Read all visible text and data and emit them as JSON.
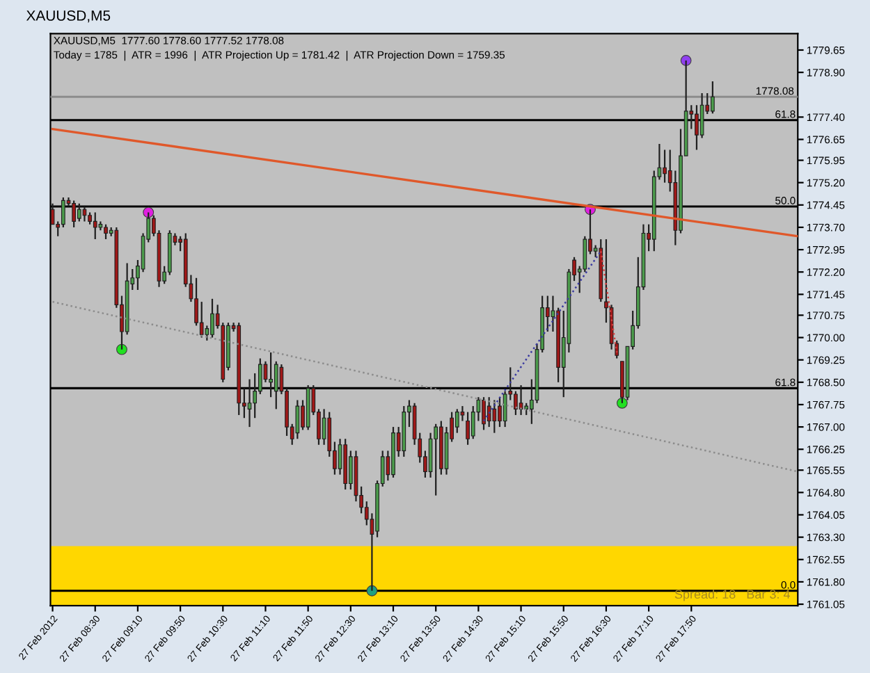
{
  "chart_data": {
    "type": "candlestick",
    "title": "XAUUSD,M5",
    "annotations": [
      "XAUUSD,M5  1777.60 1778.60 1777.52 1778.08",
      "Today = 1785  |  ATR = 1996  |  ATR Projection Up = 1781.42  |  ATR Projection Down = 1759.35",
      "Spread: 18   Bar 3: 4",
      {
        "text": "61.8",
        "x": "2012-02-27T19:28",
        "y": 1777.3
      },
      {
        "text": "50.0",
        "x": "2012-02-27T19:28",
        "y": 1774.4
      },
      {
        "text": "61.8",
        "x": "2012-02-27T19:28",
        "y": 1768.3
      },
      {
        "text": "0.0",
        "x": "2012-02-27T19:28",
        "y": 1761.5
      }
    ],
    "x": [
      "2012-02-27T07:50",
      "2012-02-27T07:55",
      "2012-02-27T08:00",
      "2012-02-27T08:05",
      "2012-02-27T08:10",
      "2012-02-27T08:15",
      "2012-02-27T08:20",
      "2012-02-27T08:25",
      "2012-02-27T08:30",
      "2012-02-27T08:35",
      "2012-02-27T08:40",
      "2012-02-27T08:45",
      "2012-02-27T08:50",
      "2012-02-27T08:55",
      "2012-02-27T09:00",
      "2012-02-27T09:05",
      "2012-02-27T09:10",
      "2012-02-27T09:15",
      "2012-02-27T09:20",
      "2012-02-27T09:25",
      "2012-02-27T09:30",
      "2012-02-27T09:35",
      "2012-02-27T09:40",
      "2012-02-27T09:45",
      "2012-02-27T09:50",
      "2012-02-27T09:55",
      "2012-02-27T10:00",
      "2012-02-27T10:05",
      "2012-02-27T10:10",
      "2012-02-27T10:15",
      "2012-02-27T10:20",
      "2012-02-27T10:25",
      "2012-02-27T10:30",
      "2012-02-27T10:35",
      "2012-02-27T10:40",
      "2012-02-27T10:45",
      "2012-02-27T10:50",
      "2012-02-27T10:55",
      "2012-02-27T11:00",
      "2012-02-27T11:05",
      "2012-02-27T11:10",
      "2012-02-27T11:15",
      "2012-02-27T11:20",
      "2012-02-27T11:25",
      "2012-02-27T11:30",
      "2012-02-27T11:35",
      "2012-02-27T11:40",
      "2012-02-27T11:45",
      "2012-02-27T11:50",
      "2012-02-27T11:55",
      "2012-02-27T12:00",
      "2012-02-27T12:05",
      "2012-02-27T12:10",
      "2012-02-27T12:15",
      "2012-02-27T12:20",
      "2012-02-27T12:25",
      "2012-02-27T12:30",
      "2012-02-27T12:35",
      "2012-02-27T12:40",
      "2012-02-27T12:45",
      "2012-02-27T12:50",
      "2012-02-27T12:55",
      "2012-02-27T13:00",
      "2012-02-27T13:05",
      "2012-02-27T13:10",
      "2012-02-27T13:15",
      "2012-02-27T13:20",
      "2012-02-27T13:25",
      "2012-02-27T13:30",
      "2012-02-27T13:35",
      "2012-02-27T13:40",
      "2012-02-27T13:45",
      "2012-02-27T13:50",
      "2012-02-27T13:55",
      "2012-02-27T14:00",
      "2012-02-27T14:05",
      "2012-02-27T14:10",
      "2012-02-27T14:15",
      "2012-02-27T14:20",
      "2012-02-27T14:25",
      "2012-02-27T14:30",
      "2012-02-27T14:35",
      "2012-02-27T14:40",
      "2012-02-27T14:45",
      "2012-02-27T14:50",
      "2012-02-27T14:55",
      "2012-02-27T15:00",
      "2012-02-27T15:05",
      "2012-02-27T15:10",
      "2012-02-27T15:15",
      "2012-02-27T15:20",
      "2012-02-27T15:25",
      "2012-02-27T15:30",
      "2012-02-27T15:35",
      "2012-02-27T15:40",
      "2012-02-27T15:45",
      "2012-02-27T15:50",
      "2012-02-27T15:55",
      "2012-02-27T16:00",
      "2012-02-27T16:05",
      "2012-02-27T16:10",
      "2012-02-27T16:15",
      "2012-02-27T16:20",
      "2012-02-27T16:25",
      "2012-02-27T16:30",
      "2012-02-27T16:35",
      "2012-02-27T16:40",
      "2012-02-27T16:45",
      "2012-02-27T16:50",
      "2012-02-27T16:55",
      "2012-02-27T17:00",
      "2012-02-27T17:05",
      "2012-02-27T17:10",
      "2012-02-27T17:15",
      "2012-02-27T17:20",
      "2012-02-27T17:25",
      "2012-02-27T17:30",
      "2012-02-27T17:35",
      "2012-02-27T17:40",
      "2012-02-27T17:45",
      "2012-02-27T17:50",
      "2012-02-27T17:55",
      "2012-02-27T18:00",
      "2012-02-27T18:05",
      "2012-02-27T18:10"
    ],
    "ohlc": [
      [
        1774.3,
        1774.5,
        1773.8,
        1773.8
      ],
      [
        1773.8,
        1773.9,
        1773.4,
        1773.7
      ],
      [
        1773.8,
        1774.7,
        1773.7,
        1774.6
      ],
      [
        1774.6,
        1774.7,
        1774.4,
        1774.5
      ],
      [
        1774.5,
        1774.6,
        1773.7,
        1773.9
      ],
      [
        1774.0,
        1774.5,
        1773.9,
        1774.3
      ],
      [
        1774.3,
        1774.4,
        1773.9,
        1774.1
      ],
      [
        1774.1,
        1774.2,
        1773.8,
        1773.9
      ],
      [
        1773.9,
        1774.2,
        1773.3,
        1773.7
      ],
      [
        1773.7,
        1773.9,
        1773.6,
        1773.8
      ],
      [
        1773.7,
        1773.8,
        1773.3,
        1773.5
      ],
      [
        1773.5,
        1773.7,
        1773.4,
        1773.6
      ],
      [
        1773.6,
        1773.7,
        1771.0,
        1771.1
      ],
      [
        1771.1,
        1771.4,
        1769.6,
        1770.2
      ],
      [
        1770.2,
        1772.5,
        1770.1,
        1771.9
      ],
      [
        1771.8,
        1772.3,
        1771.6,
        1772.0
      ],
      [
        1772.0,
        1772.6,
        1771.6,
        1772.4
      ],
      [
        1772.3,
        1773.5,
        1772.2,
        1773.4
      ],
      [
        1773.3,
        1774.2,
        1773.2,
        1774.0
      ],
      [
        1774.0,
        1774.1,
        1773.4,
        1773.5
      ],
      [
        1773.5,
        1773.6,
        1771.7,
        1771.9
      ],
      [
        1771.9,
        1772.4,
        1771.8,
        1772.2
      ],
      [
        1772.2,
        1773.6,
        1772.1,
        1773.5
      ],
      [
        1773.4,
        1773.5,
        1773.1,
        1773.2
      ],
      [
        1773.3,
        1773.4,
        1772.9,
        1773.2
      ],
      [
        1773.3,
        1773.5,
        1771.7,
        1771.8
      ],
      [
        1771.8,
        1772.1,
        1771.2,
        1771.3
      ],
      [
        1771.3,
        1772.0,
        1770.4,
        1770.5
      ],
      [
        1770.5,
        1771.2,
        1770.0,
        1770.1
      ],
      [
        1770.1,
        1770.4,
        1769.9,
        1770.3
      ],
      [
        1770.1,
        1771.3,
        1770.0,
        1770.8
      ],
      [
        1770.8,
        1771.1,
        1770.3,
        1770.4
      ],
      [
        1770.4,
        1770.5,
        1768.5,
        1768.6
      ],
      [
        1769.0,
        1770.5,
        1768.9,
        1770.4
      ],
      [
        1770.4,
        1770.5,
        1770.2,
        1770.3
      ],
      [
        1770.4,
        1770.5,
        1767.4,
        1767.8
      ],
      [
        1767.8,
        1768.3,
        1767.3,
        1767.7
      ],
      [
        1767.6,
        1768.6,
        1767.0,
        1767.8
      ],
      [
        1767.8,
        1768.8,
        1767.3,
        1768.2
      ],
      [
        1768.2,
        1769.3,
        1768.1,
        1769.1
      ],
      [
        1769.1,
        1769.2,
        1768.5,
        1768.6
      ],
      [
        1768.5,
        1769.5,
        1768.0,
        1768.6
      ],
      [
        1768.2,
        1769.2,
        1767.6,
        1769.1
      ],
      [
        1769.0,
        1769.1,
        1768.1,
        1768.2
      ],
      [
        1768.2,
        1768.3,
        1766.7,
        1767.0
      ],
      [
        1767.0,
        1767.1,
        1766.4,
        1766.6
      ],
      [
        1766.8,
        1767.9,
        1766.6,
        1767.7
      ],
      [
        1767.7,
        1767.9,
        1766.9,
        1767.0
      ],
      [
        1767.0,
        1768.4,
        1766.9,
        1768.3
      ],
      [
        1768.3,
        1768.4,
        1767.4,
        1767.5
      ],
      [
        1767.5,
        1767.6,
        1766.4,
        1766.6
      ],
      [
        1766.6,
        1767.6,
        1766.4,
        1767.3
      ],
      [
        1767.3,
        1767.5,
        1766.0,
        1766.2
      ],
      [
        1766.2,
        1766.5,
        1765.4,
        1765.6
      ],
      [
        1765.6,
        1766.6,
        1765.4,
        1766.4
      ],
      [
        1766.4,
        1766.6,
        1764.9,
        1765.1
      ],
      [
        1765.1,
        1766.2,
        1764.9,
        1766.0
      ],
      [
        1766.0,
        1766.2,
        1764.5,
        1764.7
      ],
      [
        1764.7,
        1765.0,
        1764.1,
        1764.3
      ],
      [
        1764.3,
        1764.5,
        1763.7,
        1763.9
      ],
      [
        1763.9,
        1764.1,
        1761.5,
        1763.4
      ],
      [
        1763.5,
        1765.2,
        1763.3,
        1765.1
      ],
      [
        1765.1,
        1766.2,
        1765.0,
        1766.0
      ],
      [
        1766.0,
        1766.2,
        1765.2,
        1765.4
      ],
      [
        1765.4,
        1767.0,
        1765.3,
        1766.8
      ],
      [
        1766.8,
        1767.0,
        1766.0,
        1766.2
      ],
      [
        1766.2,
        1767.7,
        1766.0,
        1767.5
      ],
      [
        1767.5,
        1767.9,
        1767.0,
        1767.7
      ],
      [
        1767.7,
        1767.8,
        1766.4,
        1766.6
      ],
      [
        1766.6,
        1766.8,
        1765.8,
        1766.0
      ],
      [
        1766.0,
        1766.2,
        1765.3,
        1765.5
      ],
      [
        1765.5,
        1766.8,
        1765.3,
        1766.6
      ],
      [
        1766.6,
        1767.1,
        1764.7,
        1767.0
      ],
      [
        1767.0,
        1767.2,
        1765.4,
        1765.6
      ],
      [
        1765.6,
        1767.0,
        1765.4,
        1766.8
      ],
      [
        1767.3,
        1767.5,
        1766.5,
        1766.6
      ],
      [
        1767.0,
        1767.6,
        1766.8,
        1767.5
      ],
      [
        1767.5,
        1767.7,
        1767.2,
        1767.4
      ],
      [
        1767.2,
        1767.5,
        1766.4,
        1766.6
      ],
      [
        1766.7,
        1767.7,
        1766.6,
        1767.5
      ],
      [
        1767.5,
        1768.0,
        1767.2,
        1767.9
      ],
      [
        1767.9,
        1768.0,
        1766.9,
        1767.1
      ],
      [
        1767.7,
        1768.0,
        1767.0,
        1767.2
      ],
      [
        1767.6,
        1767.9,
        1766.8,
        1767.2
      ],
      [
        1767.7,
        1768.0,
        1767.0,
        1767.2
      ],
      [
        1767.2,
        1768.2,
        1767.0,
        1768.1
      ],
      [
        1768.2,
        1769.0,
        1767.9,
        1768.1
      ],
      [
        1768.1,
        1768.2,
        1767.4,
        1767.6
      ],
      [
        1767.8,
        1768.4,
        1767.4,
        1767.6
      ],
      [
        1767.6,
        1767.8,
        1767.4,
        1767.7
      ],
      [
        1767.6,
        1768.6,
        1767.1,
        1767.9
      ],
      [
        1767.9,
        1769.8,
        1767.8,
        1769.6
      ],
      [
        1769.6,
        1771.4,
        1769.5,
        1771.0
      ],
      [
        1771.0,
        1771.4,
        1770.2,
        1770.7
      ],
      [
        1770.7,
        1771.4,
        1770.2,
        1770.9
      ],
      [
        1770.9,
        1771.0,
        1768.5,
        1769.0
      ],
      [
        1769.0,
        1770.9,
        1768.0,
        1770.0
      ],
      [
        1769.8,
        1772.3,
        1769.5,
        1772.2
      ],
      [
        1772.6,
        1772.7,
        1771.9,
        1772.1
      ],
      [
        1772.2,
        1772.4,
        1771.5,
        1772.3
      ],
      [
        1772.3,
        1773.4,
        1772.2,
        1773.3
      ],
      [
        1773.3,
        1774.3,
        1772.8,
        1772.9
      ],
      [
        1772.9,
        1773.1,
        1772.7,
        1773.0
      ],
      [
        1773.0,
        1773.3,
        1771.2,
        1771.3
      ],
      [
        1771.2,
        1773.3,
        1770.5,
        1771.0
      ],
      [
        1771.0,
        1771.1,
        1769.6,
        1769.8
      ],
      [
        1769.8,
        1769.9,
        1769.3,
        1769.4
      ],
      [
        1769.2,
        1769.2,
        1767.8,
        1768.0
      ],
      [
        1768.0,
        1769.7,
        1767.9,
        1769.7
      ],
      [
        1769.7,
        1770.9,
        1769.6,
        1770.4
      ],
      [
        1770.4,
        1772.7,
        1770.3,
        1771.7
      ],
      [
        1771.7,
        1773.8,
        1771.6,
        1773.5
      ],
      [
        1773.5,
        1773.8,
        1772.9,
        1773.3
      ],
      [
        1773.3,
        1775.6,
        1772.9,
        1775.4
      ],
      [
        1775.4,
        1776.5,
        1775.3,
        1775.7
      ],
      [
        1775.7,
        1776.3,
        1775.2,
        1775.5
      ],
      [
        1775.6,
        1776.3,
        1774.9,
        1775.2
      ],
      [
        1775.2,
        1775.6,
        1773.1,
        1773.6
      ],
      [
        1773.6,
        1777.0,
        1773.5,
        1776.1
      ],
      [
        1776.1,
        1779.3,
        1776.1,
        1777.6
      ],
      [
        1777.6,
        1777.8,
        1777.0,
        1777.5
      ],
      [
        1777.5,
        1777.8,
        1776.3,
        1776.8
      ],
      [
        1776.8,
        1778.2,
        1776.7,
        1777.8
      ],
      [
        1777.8,
        1778.2,
        1777.5,
        1777.6
      ],
      [
        1777.6,
        1778.6,
        1777.52,
        1778.08
      ]
    ],
    "colors": [
      "#a01818",
      "#a01818",
      "#4c9c4c",
      "#a01818",
      "#a01818",
      "#4c9c4c",
      "#a01818",
      "#a01818",
      "#a01818",
      "#4c9c4c",
      "#a01818",
      "#4c9c4c",
      "#a01818",
      "#a01818",
      "#4c9c4c",
      "#4c9c4c",
      "#4c9c4c",
      "#4c9c4c",
      "#4c9c4c",
      "#a01818",
      "#a01818",
      "#4c9c4c",
      "#4c9c4c",
      "#a01818",
      "#a01818",
      "#a01818",
      "#a01818",
      "#a01818",
      "#a01818",
      "#4c9c4c",
      "#4c9c4c",
      "#a01818",
      "#a01818",
      "#4c9c4c",
      "#a01818",
      "#a01818",
      "#a01818",
      "#4c9c4c",
      "#4c9c4c",
      "#4c9c4c",
      "#a01818",
      "#4c9c4c",
      "#4c9c4c",
      "#a01818",
      "#a01818",
      "#a01818",
      "#4c9c4c",
      "#a01818",
      "#4c9c4c",
      "#a01818",
      "#a01818",
      "#4c9c4c",
      "#a01818",
      "#a01818",
      "#4c9c4c",
      "#a01818",
      "#4c9c4c",
      "#a01818",
      "#a01818",
      "#a01818",
      "#a01818",
      "#4c9c4c",
      "#4c9c4c",
      "#a01818",
      "#4c9c4c",
      "#a01818",
      "#4c9c4c",
      "#4c9c4c",
      "#a01818",
      "#a01818",
      "#a01818",
      "#4c9c4c",
      "#4c9c4c",
      "#a01818",
      "#4c9c4c",
      "#a01818",
      "#4c9c4c",
      "#a01818",
      "#a01818",
      "#4c9c4c",
      "#4c9c4c",
      "#a01818",
      "#a01818",
      "#a01818",
      "#a01818",
      "#4c9c4c",
      "#a01818",
      "#a01818",
      "#a01818",
      "#4c9c4c",
      "#4c9c4c",
      "#4c9c4c",
      "#4c9c4c",
      "#a01818",
      "#4c9c4c",
      "#a01818",
      "#4c9c4c",
      "#4c9c4c",
      "#a01818",
      "#4c9c4c",
      "#4c9c4c",
      "#a01818",
      "#4c9c4c",
      "#a01818",
      "#a01818",
      "#a01818",
      "#a01818",
      "#a01818",
      "#4c9c4c",
      "#4c9c4c",
      "#4c9c4c",
      "#4c9c4c",
      "#a01818",
      "#4c9c4c",
      "#4c9c4c",
      "#a01818",
      "#a01818",
      "#a01818",
      "#4c9c4c",
      "#4c9c4c",
      "#a01818",
      "#a01818",
      "#4c9c4c",
      "#a01818",
      "#4c9c4c"
    ],
    "series": [
      {
        "type": "line",
        "x": [
          "2012-02-27T07:50",
          "2012-02-27T19:30"
        ],
        "values": [
          1777.0,
          1773.4
        ],
        "color": "#e0582a",
        "line_style": "solid"
      },
      {
        "type": "line",
        "x": [
          "2012-02-27T07:50",
          "2012-02-27T19:30"
        ],
        "values": [
          1771.2,
          1765.5
        ],
        "color": "#8c8c8c",
        "line_style": "dotted"
      },
      {
        "type": "line",
        "x": [
          "2012-02-27T14:35",
          "2012-02-27T16:25"
        ],
        "values": [
          1767.2,
          1772.9
        ],
        "color": "#3a3aa0",
        "line_style": "dotted"
      },
      {
        "type": "line",
        "x": [
          "2012-02-27T16:25",
          "2012-02-27T16:40"
        ],
        "values": [
          1772.9,
          1769.5
        ],
        "color": "#d04040",
        "line_style": "dotted"
      },
      {
        "type": "scatter",
        "x": [
          "2012-02-27T09:20",
          "2012-02-27T16:15"
        ],
        "values": [
          1774.2,
          1774.3
        ],
        "color": "#e020e0"
      },
      {
        "type": "scatter",
        "x": [
          "2012-02-27T08:55",
          "2012-02-27T16:45"
        ],
        "values": [
          1769.6,
          1767.8
        ],
        "color": "#22e022"
      },
      {
        "type": "scatter",
        "x": [
          "2012-02-27T17:45"
        ],
        "values": [
          1779.3
        ],
        "color": "#9040f0"
      },
      {
        "type": "scatter",
        "x": [
          "2012-02-27T12:50"
        ],
        "values": [
          1761.5
        ],
        "color": "#20a080"
      }
    ],
    "ref_lines": [
      {
        "axis": "y",
        "value": 1777.3,
        "color": "#000000",
        "line_style": "solid"
      },
      {
        "axis": "y",
        "value": 1774.4,
        "color": "#000000",
        "line_style": "solid"
      },
      {
        "axis": "y",
        "value": 1768.3,
        "color": "#000000",
        "line_style": "solid"
      },
      {
        "axis": "y",
        "value": 1761.5,
        "color": "#000000",
        "line_style": "solid"
      },
      {
        "axis": "y",
        "value": 1778.08,
        "label": "1778.08",
        "color": "#8c8c8c",
        "line_style": "solid"
      }
    ],
    "bands": [
      {
        "axis": "y",
        "from": 1761.0,
        "to": 1763.0,
        "color": "#ffd700"
      }
    ],
    "xlim": [
      "2012-02-27T07:48",
      "2012-02-27T19:30"
    ],
    "xticks": [
      {
        "value": "2012-02-27T07:50",
        "label": "27 Feb 2012"
      },
      {
        "value": "2012-02-27T08:30",
        "label": "27 Feb 08:30"
      },
      {
        "value": "2012-02-27T09:10",
        "label": "27 Feb 09:10"
      },
      {
        "value": "2012-02-27T09:50",
        "label": "27 Feb 09:50"
      },
      {
        "value": "2012-02-27T10:30",
        "label": "27 Feb 10:30"
      },
      {
        "value": "2012-02-27T11:10",
        "label": "27 Feb 11:10"
      },
      {
        "value": "2012-02-27T11:50",
        "label": "27 Feb 11:50"
      },
      {
        "value": "2012-02-27T12:30",
        "label": "27 Feb 12:30"
      },
      {
        "value": "2012-02-27T13:10",
        "label": "27 Feb 13:10"
      },
      {
        "value": "2012-02-27T13:50",
        "label": "27 Feb 13:50"
      },
      {
        "value": "2012-02-27T14:30",
        "label": "27 Feb 14:30"
      },
      {
        "value": "2012-02-27T15:10",
        "label": "27 Feb 15:10"
      },
      {
        "value": "2012-02-27T15:50",
        "label": "27 Feb 15:50"
      },
      {
        "value": "2012-02-27T16:30",
        "label": "27 Feb 16:30"
      },
      {
        "value": "2012-02-27T17:10",
        "label": "27 Feb 17:10"
      },
      {
        "value": "2012-02-27T17:50",
        "label": "27 Feb 17:50"
      }
    ],
    "ylim": [
      1761.0,
      1780.2
    ],
    "yticks": [
      1761.05,
      {
        "value": 1761.8,
        "label": "1761.80"
      },
      1762.55,
      {
        "value": 1763.3,
        "label": "1763.30"
      },
      1764.05,
      {
        "value": 1764.8,
        "label": "1764.80"
      },
      1765.55,
      1766.25,
      {
        "value": 1767.0,
        "label": "1767.00"
      },
      1767.75,
      {
        "value": 1768.5,
        "label": "1768.50"
      },
      1769.25,
      {
        "value": 1770.0,
        "label": "1770.00"
      },
      1770.75,
      1771.45,
      {
        "value": 1772.2,
        "label": "1772.20"
      },
      1772.95,
      {
        "value": 1773.7,
        "label": "1773.70"
      },
      1774.45,
      {
        "value": 1775.2,
        "label": "1775.20"
      },
      1775.95,
      1776.65,
      {
        "value": 1777.4,
        "label": "1777.40"
      },
      {
        "value": 1778.9,
        "label": "1778.90"
      },
      1779.65
    ]
  }
}
